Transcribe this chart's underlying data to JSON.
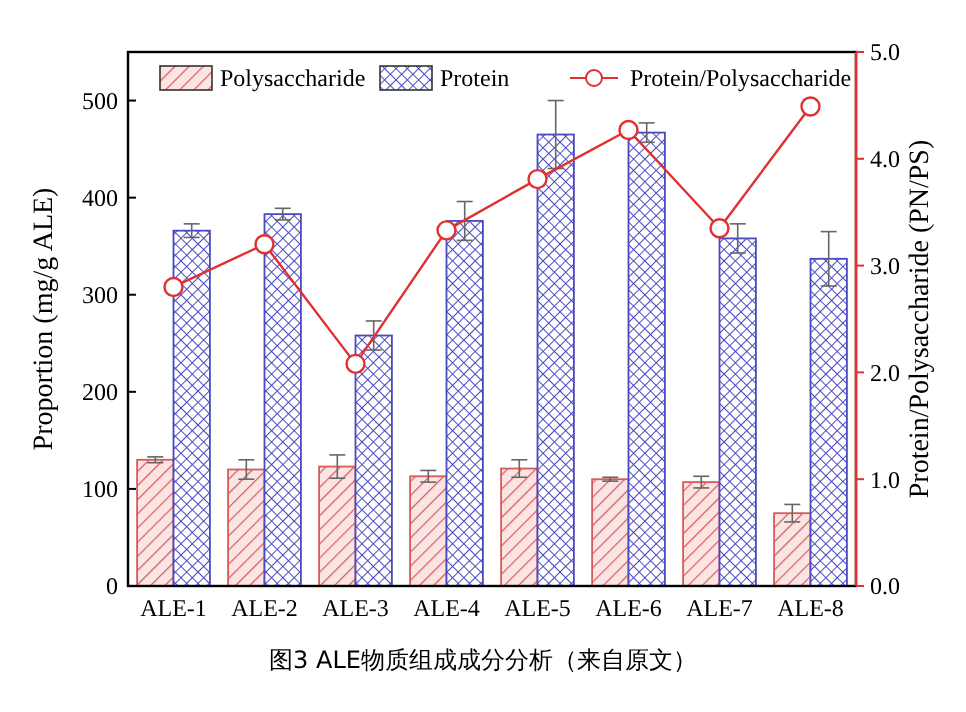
{
  "chart_data": {
    "type": "bar",
    "categories": [
      "ALE-1",
      "ALE-2",
      "ALE-3",
      "ALE-4",
      "ALE-5",
      "ALE-6",
      "ALE-7",
      "ALE-8"
    ],
    "ylabel": "Proportion (mg/g ALE)",
    "y2label": "Protein/Polysaccharide (PN/PS)",
    "series": [
      {
        "name": "Polysaccharide",
        "color": "#d85a5a",
        "values": [
          130,
          120,
          123,
          113,
          121,
          110,
          107,
          75
        ],
        "errors": [
          3,
          10,
          12,
          6,
          9,
          2,
          6,
          9
        ]
      },
      {
        "name": "Protein",
        "color": "#4a4ac0",
        "values": [
          366,
          383,
          258,
          376,
          465,
          467,
          358,
          337
        ],
        "errors": [
          7,
          6,
          15,
          20,
          35,
          10,
          15,
          28
        ]
      },
      {
        "name": "Protein/Polysaccharide",
        "type": "line",
        "axis": "y2",
        "color": "#e03030",
        "values": [
          2.8,
          3.2,
          2.08,
          3.33,
          3.81,
          4.27,
          3.35,
          4.49
        ]
      }
    ],
    "ylim": [
      0,
      550
    ],
    "yticks": [
      0,
      100,
      200,
      300,
      400,
      500
    ],
    "y2lim": [
      0,
      5
    ],
    "y2ticks": [
      {
        "value": 0,
        "label": "0.0"
      },
      {
        "value": 1,
        "label": "1.0"
      },
      {
        "value": 2,
        "label": "2.0"
      },
      {
        "value": 3,
        "label": "3.0"
      },
      {
        "value": 4,
        "label": "4.0"
      },
      {
        "value": 5,
        "label": "5.0"
      }
    ],
    "marker": "circle",
    "legend": "top",
    "grid": false,
    "annotations": [
      "图3  ALE物质组成成分分析（来自原文）"
    ]
  }
}
